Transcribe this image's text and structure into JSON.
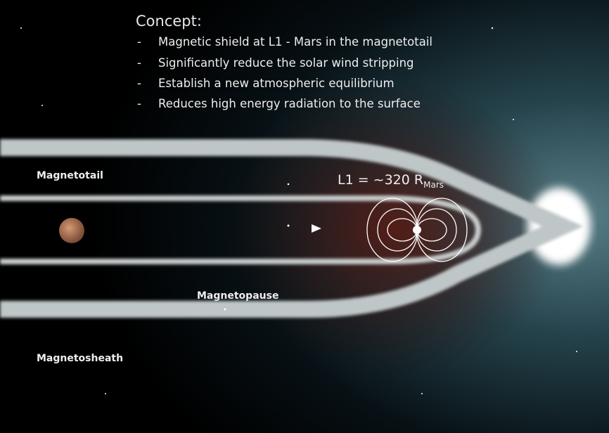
{
  "concept": {
    "title": "Concept:",
    "bullets": [
      {
        "marker": "-",
        "text": "Magnetic shield at L1 - Mars in the magnetotail"
      },
      {
        "marker": "-",
        "text": "Significantly reduce the solar wind stripping"
      },
      {
        "marker": "-",
        "text": "Establish a new atmospheric equilibrium"
      },
      {
        "marker": "-",
        "text": "Reduces high energy radiation to the surface"
      }
    ]
  },
  "labels": {
    "magnetotail": "Magnetotail",
    "l1": {
      "text": "L1 = ~320 R",
      "subscript": "Mars"
    },
    "magnetopause": "Magnetopause",
    "magnetosheath": "Magnetosheath"
  }
}
